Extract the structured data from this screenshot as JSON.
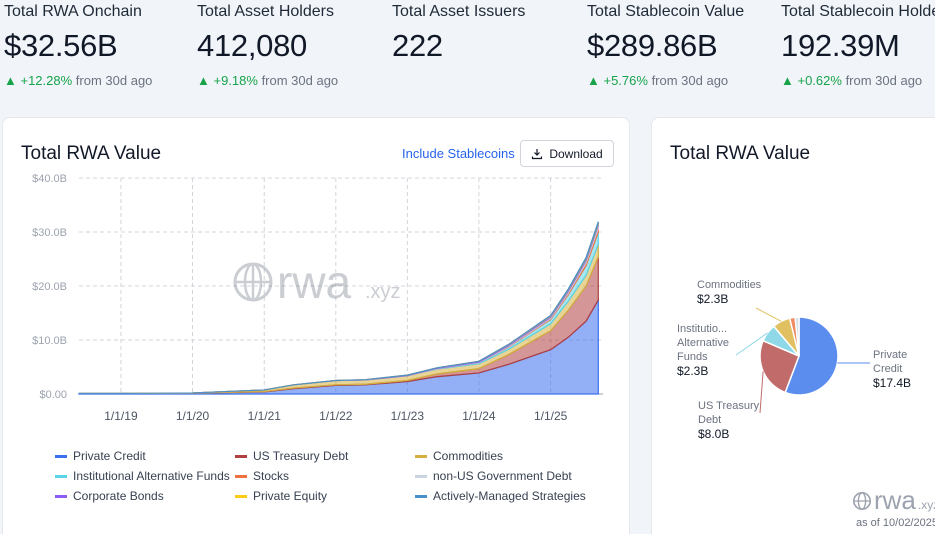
{
  "stats": [
    {
      "label": "Total RWA Onchain",
      "value": "$32.56B",
      "change": "▲ +12.28%",
      "suffix": "from 30d ago"
    },
    {
      "label": "Total Asset Holders",
      "value": "412,080",
      "change": "▲ +9.18%",
      "suffix": "from 30d ago"
    },
    {
      "label": "Total Asset Issuers",
      "value": "222"
    },
    {
      "label": "Total Stablecoin Value",
      "value": "$289.86B",
      "change": "▲ +5.76%",
      "suffix": "from 30d ago"
    },
    {
      "label": "Total Stablecoin Holders",
      "value": "192.39M",
      "change": "▲ +0.62%",
      "suffix": "from 30d ago"
    }
  ],
  "main_card": {
    "title": "Total RWA Value",
    "include_stablecoins": "Include Stablecoins",
    "download": "Download",
    "watermark": "rwa",
    "watermark_suffix": ".xyz"
  },
  "chart_data": [
    {
      "type": "area",
      "title": "Total RWA Value",
      "stacked": true,
      "y_ticks": [
        "$40.0B",
        "$30.0B",
        "$20.0B",
        "$10.0B",
        "$0.00"
      ],
      "ylim": [
        0,
        40
      ],
      "x_ticks": [
        "1/1/19",
        "1/1/20",
        "1/1/21",
        "1/1/22",
        "1/1/23",
        "1/1/24",
        "1/1/25"
      ],
      "x": [
        "2018-06",
        "2019-01",
        "2020-01",
        "2021-01",
        "2021-06",
        "2022-01",
        "2022-06",
        "2023-01",
        "2023-06",
        "2024-01",
        "2024-06",
        "2025-01",
        "2025-04",
        "2025-07",
        "2025-09"
      ],
      "series": [
        {
          "name": "Private Credit",
          "color": "#3b6ff0",
          "values": [
            0.1,
            0.1,
            0.15,
            0.4,
            1.0,
            1.6,
            1.7,
            2.3,
            3.2,
            3.9,
            5.5,
            8.2,
            10.5,
            13.5,
            17.4
          ]
        },
        {
          "name": "US Treasury Debt",
          "color": "#b04040",
          "values": [
            0.0,
            0.0,
            0.0,
            0.05,
            0.1,
            0.1,
            0.1,
            0.2,
            0.5,
            0.8,
            1.8,
            3.5,
            5.0,
            6.5,
            8.0
          ]
        },
        {
          "name": "Commodities",
          "color": "#d4b040",
          "values": [
            0.0,
            0.0,
            0.05,
            0.3,
            0.6,
            0.8,
            0.8,
            0.9,
            0.9,
            0.9,
            1.0,
            1.3,
            1.7,
            2.0,
            2.3
          ]
        },
        {
          "name": "Institutional Alternative Funds",
          "color": "#5bd4e8",
          "values": [
            0.0,
            0.0,
            0.0,
            0.0,
            0.0,
            0.0,
            0.0,
            0.0,
            0.1,
            0.2,
            0.4,
            0.8,
            1.2,
            1.8,
            2.3
          ]
        },
        {
          "name": "Stocks",
          "color": "#f07040",
          "values": [
            0.0,
            0.0,
            0.0,
            0.0,
            0.0,
            0.0,
            0.0,
            0.0,
            0.0,
            0.0,
            0.1,
            0.2,
            0.3,
            0.5,
            0.7
          ]
        },
        {
          "name": "non-US Government Debt",
          "color": "#cbd5e1",
          "values": [
            0.0,
            0.0,
            0.0,
            0.0,
            0.0,
            0.0,
            0.0,
            0.0,
            0.05,
            0.1,
            0.15,
            0.2,
            0.3,
            0.4,
            0.5
          ]
        },
        {
          "name": "Corporate Bonds",
          "color": "#8b5cf6",
          "values": [
            0.0,
            0.0,
            0.0,
            0.0,
            0.0,
            0.0,
            0.05,
            0.1,
            0.1,
            0.15,
            0.2,
            0.2,
            0.25,
            0.3,
            0.3
          ]
        },
        {
          "name": "Private Equity",
          "color": "#facc15",
          "values": [
            0.0,
            0.0,
            0.0,
            0.0,
            0.0,
            0.0,
            0.0,
            0.0,
            0.0,
            0.0,
            0.05,
            0.1,
            0.1,
            0.15,
            0.2
          ]
        },
        {
          "name": "Actively-Managed Strategies",
          "color": "#4a90c8",
          "values": [
            0.0,
            0.0,
            0.0,
            0.0,
            0.0,
            0.0,
            0.0,
            0.0,
            0.0,
            0.0,
            0.0,
            0.05,
            0.1,
            0.15,
            0.2
          ]
        }
      ],
      "legend_placement": "bottom",
      "grid": true
    },
    {
      "type": "pie",
      "title": "Total RWA Value",
      "slices": [
        {
          "label": "Private Credit",
          "display": "$17.4B",
          "value": 17.4,
          "color": "#5b8def"
        },
        {
          "label": "US Treasury Debt",
          "display": "$8.0B",
          "value": 8.0,
          "color": "#c26b6b"
        },
        {
          "label": "Institutional Alternative Funds",
          "short_label": "Institutio... Alternative Funds",
          "display": "$2.3B",
          "value": 2.3,
          "color": "#8ed8e8"
        },
        {
          "label": "Commodities",
          "display": "$2.3B",
          "value": 2.3,
          "color": "#e0c060"
        },
        {
          "label": "Stocks",
          "value": 0.7,
          "color": "#f08a60"
        },
        {
          "label": "non-US Government Debt",
          "value": 0.5,
          "color": "#d8dee8"
        }
      ]
    }
  ],
  "side_card": {
    "title": "Total RWA Value",
    "watermark": "rwa",
    "watermark_suffix": ".xyz",
    "asof": "as of 10/02/2025"
  }
}
